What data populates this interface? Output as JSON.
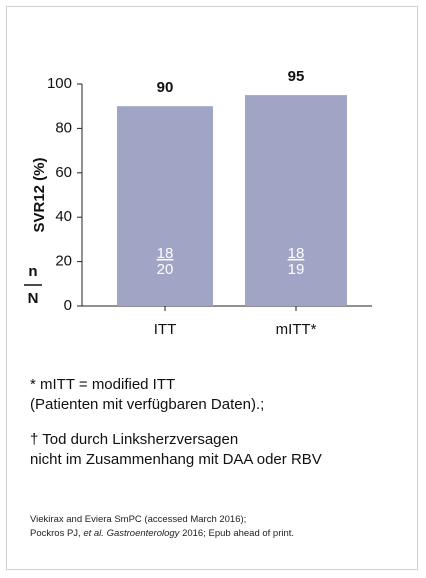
{
  "chart_data": {
    "type": "bar",
    "y_label": "SVR12 (%)",
    "n_label": "n",
    "N_label": "N",
    "categories": [
      "ITT",
      "mITT*"
    ],
    "values": [
      90,
      95
    ],
    "n": [
      18,
      18
    ],
    "N": [
      20,
      19
    ],
    "color": "#a0a5c6",
    "ylim": [
      0,
      100
    ],
    "yticks": [
      0,
      20,
      40,
      60,
      80,
      100
    ]
  },
  "footnotes": [
    "* mITT = modified ITT",
    "(Patienten mit verfügbaren Daten).;",
    "† Tod durch Linksherzversagen",
    "nicht im Zusammenhang mit DAA oder RBV"
  ],
  "references": {
    "line1": "Viekirax and Eviera SmPC (accessed March 2016);",
    "line2_start": "Pockros PJ, ",
    "line2_italic": "et al. Gastroenterology",
    "line2_end": " 2016; Epub ahead of print."
  }
}
